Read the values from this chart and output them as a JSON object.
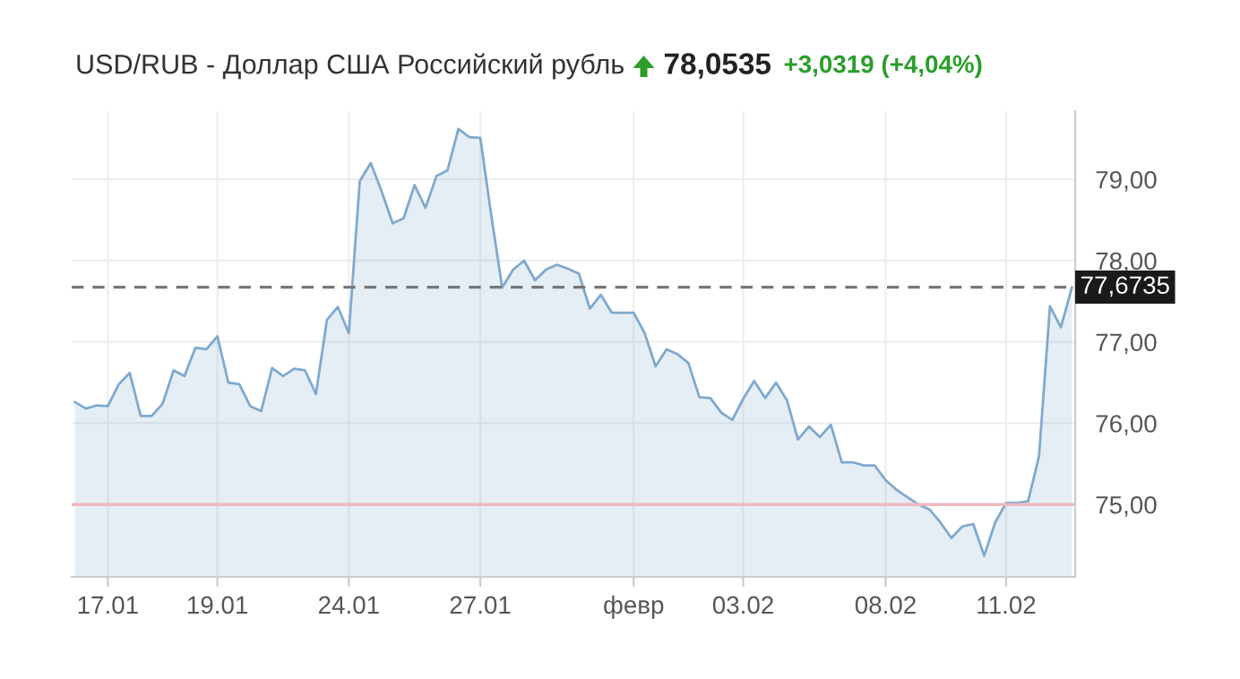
{
  "chart_data": {
    "type": "area",
    "title": "USD/RUB - Доллар США Российский рубль",
    "annotations": [
      "78,0535",
      "+3,0319 (+4,04%)"
    ],
    "categories": [
      null,
      null,
      null,
      "17.01",
      null,
      null,
      null,
      null,
      null,
      null,
      null,
      null,
      null,
      "19.01",
      null,
      null,
      null,
      null,
      null,
      null,
      null,
      null,
      null,
      null,
      null,
      "24.01",
      null,
      null,
      null,
      null,
      null,
      null,
      null,
      null,
      null,
      null,
      null,
      "27.01",
      null,
      null,
      null,
      null,
      null,
      null,
      null,
      null,
      null,
      null,
      null,
      null,
      null,
      "февр",
      null,
      null,
      null,
      null,
      null,
      null,
      null,
      null,
      null,
      "03.02",
      null,
      null,
      null,
      null,
      null,
      null,
      null,
      null,
      null,
      null,
      null,
      null,
      "08.02",
      null,
      null,
      null,
      null,
      null,
      null,
      null,
      null,
      null,
      null,
      "11.02",
      null,
      null,
      null,
      null,
      null,
      null
    ],
    "series": [
      {
        "color": "#7fa9cf",
        "values": [
          76.26,
          76.18,
          76.22,
          76.21,
          76.48,
          76.62,
          76.09,
          76.09,
          76.24,
          76.65,
          76.58,
          76.93,
          76.91,
          77.07,
          76.5,
          76.48,
          76.21,
          76.15,
          76.68,
          76.58,
          76.67,
          76.65,
          76.36,
          77.27,
          77.43,
          77.11,
          78.98,
          79.2,
          78.85,
          78.46,
          78.52,
          78.93,
          78.65,
          79.04,
          79.11,
          79.62,
          79.52,
          79.51,
          78.56,
          77.67,
          77.89,
          78.0,
          77.76,
          77.89,
          77.95,
          77.9,
          77.84,
          77.41,
          77.58,
          77.36,
          77.36,
          77.36,
          77.11,
          76.7,
          76.91,
          76.85,
          76.74,
          76.32,
          76.31,
          76.13,
          76.04,
          76.3,
          76.52,
          76.31,
          76.5,
          76.28,
          75.8,
          75.96,
          75.83,
          75.98,
          75.52,
          75.52,
          75.48,
          75.48,
          75.3,
          75.18,
          75.09,
          75.0,
          74.94,
          74.78,
          74.59,
          74.73,
          74.76,
          74.37,
          74.78,
          75.02,
          75.02,
          75.04,
          75.59,
          77.44,
          77.18,
          77.67
        ]
      }
    ],
    "ylim": [
      74.11,
      79.84
    ],
    "yticks": [
      {
        "value": 75,
        "label": "75,00"
      },
      {
        "value": 76,
        "label": "76,00"
      },
      {
        "value": 77,
        "label": "77,00"
      },
      {
        "value": 78,
        "label": "78,00"
      },
      {
        "value": 79,
        "label": "79,00"
      }
    ],
    "ref_lines": [
      {
        "axis": "y",
        "value": 75,
        "color": "#f0b8bf",
        "line_style": "solid"
      },
      {
        "axis": "y",
        "value": 77.6735,
        "label": "77,6735",
        "color": "#777777",
        "line_style": "dashed"
      }
    ],
    "grid": true
  }
}
